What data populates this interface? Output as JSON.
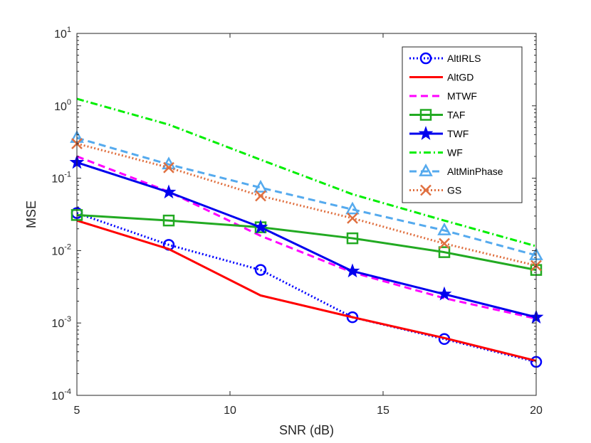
{
  "chart_data": {
    "type": "line",
    "title": "",
    "xlabel": "SNR (dB)",
    "ylabel": "MSE",
    "yscale": "log",
    "xlim": [
      5,
      20
    ],
    "ylim": [
      0.0001,
      10
    ],
    "xticks": [
      5,
      10,
      15,
      20
    ],
    "yticks": [
      {
        "base": "10",
        "exp": "-4"
      },
      {
        "base": "10",
        "exp": "-3"
      },
      {
        "base": "10",
        "exp": "-2"
      },
      {
        "base": "10",
        "exp": "-1"
      },
      {
        "base": "10",
        "exp": "0"
      },
      {
        "base": "10",
        "exp": "1"
      }
    ],
    "grid": false,
    "legend_position": "top-right",
    "x": [
      5,
      8,
      11,
      14,
      17,
      20
    ],
    "series": [
      {
        "name": "AltIRLS",
        "color": "#0000ff",
        "dash": "2,3",
        "marker": "circle",
        "values": [
          0.033,
          0.012,
          0.0054,
          0.0012,
          0.0006,
          0.00029
        ]
      },
      {
        "name": "AltGD",
        "color": "#ff0000",
        "dash": "",
        "marker": "none",
        "values": [
          0.026,
          0.0105,
          0.0024,
          0.0012,
          0.00062,
          0.0003
        ]
      },
      {
        "name": "MTWF",
        "color": "#ff00ff",
        "dash": "10,6",
        "marker": "none",
        "values": [
          0.2,
          0.065,
          0.016,
          0.005,
          0.0022,
          0.00115
        ]
      },
      {
        "name": "TAF",
        "color": "#22aa22",
        "dash": "",
        "marker": "square",
        "values": [
          0.031,
          0.026,
          0.021,
          0.0148,
          0.0095,
          0.0054
        ]
      },
      {
        "name": "TWF",
        "color": "#0000ee",
        "dash": "",
        "marker": "star",
        "values": [
          0.165,
          0.064,
          0.021,
          0.0052,
          0.0025,
          0.0012
        ]
      },
      {
        "name": "WF",
        "color": "#00ee00",
        "dash": "10,4,2,4",
        "marker": "none",
        "values": [
          1.25,
          0.55,
          0.18,
          0.06,
          0.026,
          0.0115
        ]
      },
      {
        "name": "AltMinPhase",
        "color": "#55aaee",
        "dash": "10,6",
        "marker": "triangle",
        "values": [
          0.36,
          0.155,
          0.074,
          0.037,
          0.019,
          0.0086
        ]
      },
      {
        "name": "GS",
        "color": "#e07040",
        "dash": "2,3",
        "marker": "x",
        "values": [
          0.3,
          0.14,
          0.057,
          0.028,
          0.0125,
          0.0062
        ]
      }
    ]
  }
}
